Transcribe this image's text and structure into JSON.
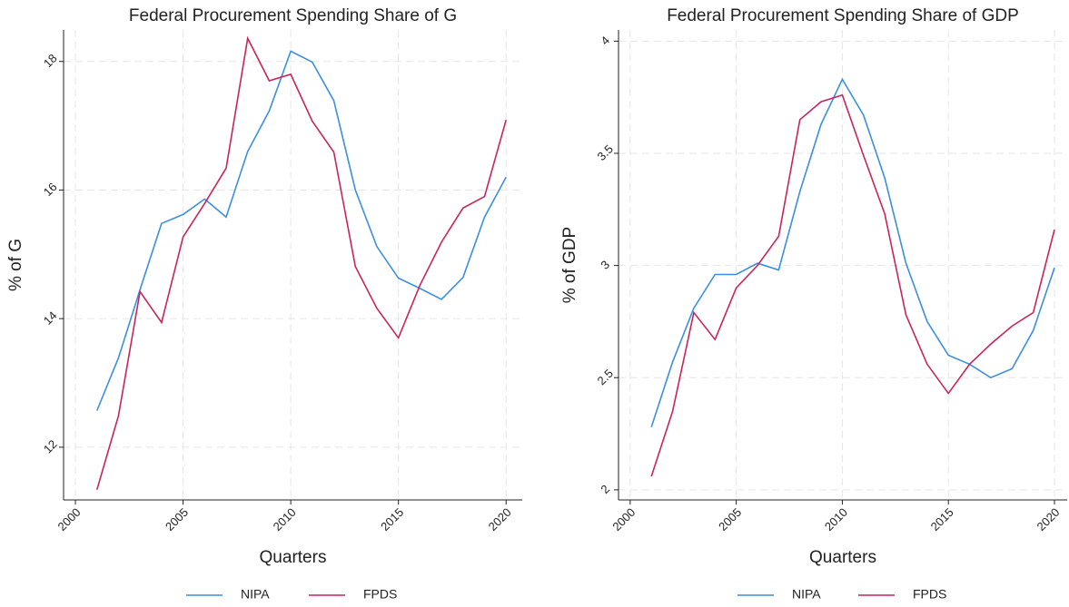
{
  "chart_data": [
    {
      "type": "line",
      "title": "Federal Procurement Spending Share of G",
      "x_label": "Quarters",
      "y_label": "% of G",
      "x": [
        2001,
        2002,
        2003,
        2004,
        2005,
        2006,
        2007,
        2008,
        2009,
        2010,
        2011,
        2012,
        2013,
        2014,
        2015,
        2016,
        2017,
        2018,
        2019,
        2020
      ],
      "series": [
        {
          "name": "NIPA",
          "color": "#3a8fe0",
          "values": [
            12.57,
            13.39,
            14.45,
            15.48,
            15.62,
            15.86,
            15.58,
            16.6,
            17.23,
            18.16,
            17.99,
            17.39,
            16.0,
            15.12,
            14.63,
            14.47,
            14.3,
            14.64,
            15.58,
            16.2
          ]
        },
        {
          "name": "FPDS",
          "color": "#c8245c",
          "values": [
            11.34,
            12.49,
            14.42,
            13.94,
            15.27,
            15.79,
            16.34,
            18.36,
            17.7,
            17.8,
            17.07,
            16.59,
            14.81,
            14.16,
            13.7,
            14.52,
            15.19,
            15.72,
            15.9,
            17.09
          ]
        }
      ],
      "xlim": [
        1999.45,
        2020.75
      ],
      "xticks": [
        2000,
        2005,
        2010,
        2015,
        2020
      ],
      "ylim": [
        11.18,
        18.49
      ],
      "yticks": [
        12,
        14,
        16,
        18
      ],
      "grid": true,
      "legend": "bottom"
    },
    {
      "type": "line",
      "title": "Federal Procurement Spending Share of GDP",
      "x_label": "Quarters",
      "y_label": "% of GDP",
      "x": [
        2001,
        2002,
        2003,
        2004,
        2005,
        2006,
        2007,
        2008,
        2009,
        2010,
        2011,
        2012,
        2013,
        2014,
        2015,
        2016,
        2017,
        2018,
        2019,
        2020
      ],
      "series": [
        {
          "name": "NIPA",
          "color": "#3a8fe0",
          "values": [
            2.28,
            2.57,
            2.81,
            2.96,
            2.96,
            3.01,
            2.98,
            3.33,
            3.63,
            3.83,
            3.67,
            3.39,
            3.01,
            2.75,
            2.6,
            2.56,
            2.5,
            2.54,
            2.71,
            2.99
          ]
        },
        {
          "name": "FPDS",
          "color": "#c8245c",
          "values": [
            2.06,
            2.35,
            2.79,
            2.67,
            2.9,
            3.0,
            3.13,
            3.65,
            3.73,
            3.76,
            3.49,
            3.23,
            2.78,
            2.56,
            2.43,
            2.56,
            2.65,
            2.73,
            2.79,
            3.16
          ]
        }
      ],
      "xlim": [
        1999.45,
        2020.6
      ],
      "xticks": [
        2000,
        2005,
        2010,
        2015,
        2020
      ],
      "ylim": [
        1.955,
        4.05
      ],
      "yticks": [
        2,
        2.5,
        3,
        3.5,
        4
      ],
      "grid": true,
      "legend": "bottom"
    }
  ]
}
